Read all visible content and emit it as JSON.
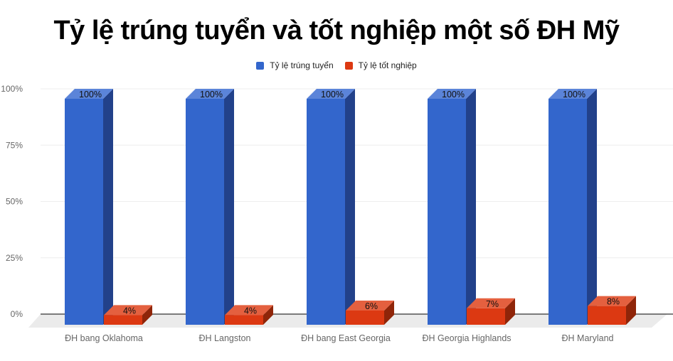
{
  "chart_data": {
    "type": "bar",
    "title": "Tỷ lệ trúng tuyển và tốt nghiệp một số ĐH Mỹ",
    "categories": [
      "ĐH bang Oklahoma",
      "ĐH Langston",
      "ĐH bang East Georgia",
      "ĐH Georgia Highlands",
      "ĐH Maryland"
    ],
    "series": [
      {
        "name": "Tỷ lệ trúng tuyển",
        "color": "#3366cc",
        "values": [
          100,
          100,
          100,
          100,
          100
        ],
        "labels": [
          "100%",
          "100%",
          "100%",
          "100%",
          "100%"
        ]
      },
      {
        "name": "Tỷ lệ tốt nghiệp",
        "color": "#dc3912",
        "values": [
          4,
          4,
          6,
          7,
          8
        ],
        "labels": [
          "4%",
          "4%",
          "6%",
          "7%",
          "8%"
        ]
      }
    ],
    "xlabel": "",
    "ylabel": "",
    "ylim": [
      0,
      100
    ],
    "yticks": [
      "0%",
      "25%",
      "50%",
      "75%",
      "100%"
    ],
    "grid": true,
    "legend_position": "top",
    "style": "3d"
  },
  "title": "Tỷ lệ trúng tuyển và tốt nghiệp một số ĐH Mỹ",
  "legend": [
    {
      "label": "Tỷ lệ trúng tuyển",
      "color": "#3366cc"
    },
    {
      "label": "Tỷ lệ tốt nghiệp",
      "color": "#dc3912"
    }
  ]
}
